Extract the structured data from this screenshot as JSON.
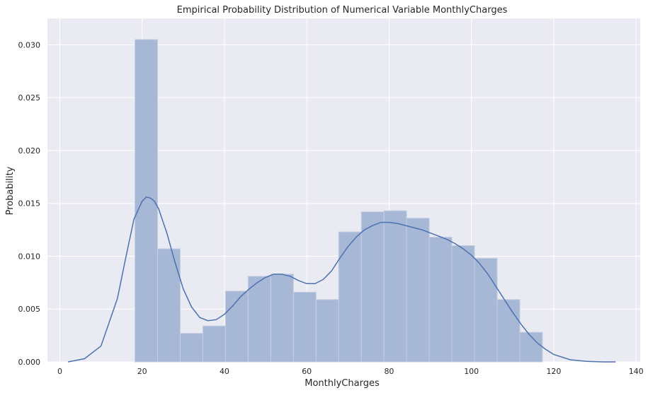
{
  "chart_data": {
    "type": "bar",
    "title": "Empirical Probability Distribution of Numerical Variable MonthlyCharges",
    "xlabel": "MonthlyCharges",
    "ylabel": "Probability",
    "xlim": [
      -3,
      141
    ],
    "ylim": [
      0,
      0.0325
    ],
    "xticks": [
      0,
      20,
      40,
      60,
      80,
      100,
      120,
      140
    ],
    "yticks": [
      0.0,
      0.005,
      0.01,
      0.015,
      0.02,
      0.025,
      0.03
    ],
    "ytick_labels": [
      "0.000",
      "0.005",
      "0.010",
      "0.015",
      "0.020",
      "0.025",
      "0.030"
    ],
    "grid": true,
    "histogram": {
      "bin_start": 18.25,
      "bin_width": 5.5,
      "values": [
        0.0305,
        0.0107,
        0.0027,
        0.0034,
        0.0067,
        0.0081,
        0.0083,
        0.0066,
        0.0059,
        0.0123,
        0.0142,
        0.0143,
        0.0136,
        0.0118,
        0.011,
        0.0098,
        0.0059,
        0.0028
      ]
    },
    "kde": {
      "x": [
        2,
        6,
        10,
        14,
        16,
        18,
        20,
        21,
        22,
        23,
        24,
        26,
        28,
        30,
        32,
        34,
        36,
        38,
        40,
        42,
        44,
        46,
        48,
        50,
        52,
        54,
        56,
        58,
        60,
        62,
        64,
        66,
        68,
        70,
        72,
        74,
        76,
        78,
        80,
        82,
        84,
        86,
        88,
        90,
        92,
        94,
        96,
        98,
        100,
        102,
        104,
        106,
        108,
        110,
        112,
        114,
        116,
        118,
        120,
        124,
        128,
        132,
        135
      ],
      "y": [
        0.0,
        0.0003,
        0.0015,
        0.006,
        0.0098,
        0.0135,
        0.0152,
        0.0156,
        0.0155,
        0.0152,
        0.0145,
        0.0122,
        0.0094,
        0.0069,
        0.0052,
        0.0042,
        0.0039,
        0.004,
        0.0045,
        0.0053,
        0.0062,
        0.0069,
        0.0075,
        0.008,
        0.0083,
        0.0083,
        0.0081,
        0.0077,
        0.0074,
        0.0074,
        0.0078,
        0.0086,
        0.0098,
        0.0109,
        0.0118,
        0.0125,
        0.0129,
        0.0132,
        0.0132,
        0.0131,
        0.0129,
        0.0127,
        0.0125,
        0.0122,
        0.0119,
        0.0116,
        0.0112,
        0.0107,
        0.0101,
        0.0093,
        0.0083,
        0.0071,
        0.0059,
        0.0047,
        0.0036,
        0.0026,
        0.0018,
        0.0012,
        0.0007,
        0.0002,
        5e-05,
        0.0,
        0.0
      ]
    },
    "colors": {
      "background": "#eaeaf2",
      "grid": "#ffffff",
      "bar": "#a7b7d6",
      "bar_edge": "#c4cfe4",
      "kde": "#4c72b0"
    }
  }
}
